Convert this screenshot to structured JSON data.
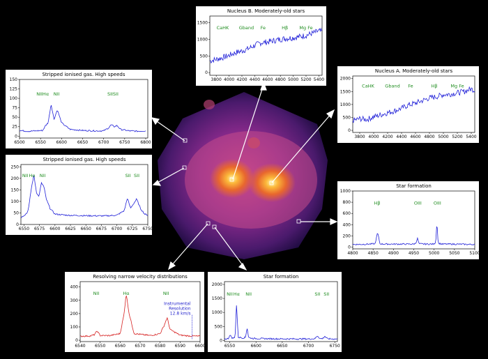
{
  "colors": {
    "blue_line": "#2020d8",
    "red_line": "#d62020",
    "label_green": "#1e8c1e",
    "map_dark": "#1a0a3c",
    "map_mid": "#6a1f8a",
    "map_bright": "#e8672d",
    "map_core": "#fff3a0"
  },
  "chart_data": [
    {
      "id": "nucleusB",
      "type": "line",
      "title": "Nucleus B. Moderately-old stars",
      "xlim": [
        3700,
        5450
      ],
      "ylim": [
        -80,
        1700
      ],
      "xticks": [
        3800,
        4000,
        4200,
        4400,
        4600,
        4800,
        5000,
        5200,
        5400
      ],
      "yticks": [
        0,
        500,
        1000,
        1500
      ],
      "color": "blue",
      "labels": [
        {
          "text": "CaHK",
          "x": 3900,
          "y": 1300
        },
        {
          "text": "Gband",
          "x": 4270,
          "y": 1300
        },
        {
          "text": "Fe",
          "x": 4530,
          "y": 1300
        },
        {
          "text": "Hβ",
          "x": 4870,
          "y": 1300
        },
        {
          "text": "Mg Fe",
          "x": 5200,
          "y": 1300
        }
      ],
      "series": [
        {
          "x": [
            3700,
            3800,
            3900,
            4000,
            4100,
            4200,
            4300,
            4400,
            4500,
            4600,
            4700,
            4800,
            4900,
            5000,
            5100,
            5200,
            5300,
            5400,
            5450
          ],
          "values": [
            350,
            400,
            450,
            520,
            600,
            650,
            720,
            820,
            900,
            920,
            960,
            1000,
            1030,
            1050,
            1080,
            1120,
            1180,
            1250,
            1230
          ]
        }
      ]
    },
    {
      "id": "nucleusA",
      "type": "line",
      "title": "Nucleus A. Moderately-old stars",
      "xlim": [
        3700,
        5450
      ],
      "ylim": [
        -80,
        2100
      ],
      "xticks": [
        3800,
        4000,
        4200,
        4400,
        4600,
        4800,
        5000,
        5200,
        5400
      ],
      "yticks": [
        0,
        500,
        1000,
        1500,
        2000
      ],
      "color": "blue",
      "labels": [
        {
          "text": "CaHK",
          "x": 3920,
          "y": 1650
        },
        {
          "text": "Gband",
          "x": 4270,
          "y": 1650
        },
        {
          "text": "Fe",
          "x": 4530,
          "y": 1650
        },
        {
          "text": "Hβ",
          "x": 4870,
          "y": 1650
        },
        {
          "text": "Mg Fe",
          "x": 5200,
          "y": 1650
        }
      ],
      "series": [
        {
          "x": [
            3700,
            3800,
            3900,
            4000,
            4100,
            4200,
            4300,
            4400,
            4500,
            4600,
            4700,
            4800,
            4900,
            5000,
            5100,
            5200,
            5300,
            5400,
            5450
          ],
          "values": [
            380,
            450,
            420,
            520,
            600,
            680,
            750,
            850,
            980,
            1050,
            1150,
            1250,
            1300,
            1380,
            1400,
            1450,
            1500,
            1600,
            1550
          ]
        }
      ]
    },
    {
      "id": "stripped1",
      "type": "line",
      "title": "Stripped ionised gas. High speeds",
      "xlim": [
        6500,
        6805
      ],
      "ylim": [
        -5,
        150
      ],
      "xticks": [
        6500,
        6550,
        6600,
        6650,
        6700,
        6750,
        6800
      ],
      "yticks": [
        0,
        25,
        50,
        75,
        100,
        125,
        150
      ],
      "color": "blue",
      "labels": [
        {
          "text": "NIIHα",
          "x": 6555,
          "y": 108
        },
        {
          "text": "NII",
          "x": 6588,
          "y": 108
        },
        {
          "text": "SIISII",
          "x": 6722,
          "y": 108
        }
      ],
      "series": [
        {
          "x": [
            6500,
            6520,
            6540,
            6555,
            6562,
            6568,
            6575,
            6582,
            6590,
            6600,
            6620,
            6650,
            6680,
            6700,
            6712,
            6718,
            6725,
            6732,
            6740,
            6760,
            6780,
            6800
          ],
          "values": [
            15,
            13,
            14,
            15,
            28,
            35,
            85,
            45,
            70,
            35,
            18,
            15,
            14,
            14,
            22,
            30,
            25,
            28,
            18,
            14,
            13,
            14
          ]
        }
      ]
    },
    {
      "id": "stripped2",
      "type": "line",
      "title": "Stripped ionised gas. High speeds",
      "xlim": [
        6545,
        6750
      ],
      "ylim": [
        0,
        260
      ],
      "xticks": [
        6550,
        6575,
        6600,
        6625,
        6650,
        6675,
        6700,
        6725,
        6750
      ],
      "yticks": [
        0,
        50,
        100,
        150,
        200,
        250
      ],
      "color": "blue",
      "labels": [
        {
          "text": "NII",
          "x": 6552,
          "y": 205
        },
        {
          "text": "Hα",
          "x": 6563,
          "y": 205
        },
        {
          "text": "NII",
          "x": 6580,
          "y": 205
        },
        {
          "text": "SII",
          "x": 6718,
          "y": 205
        },
        {
          "text": "SII",
          "x": 6732,
          "y": 205
        }
      ],
      "series": [
        {
          "x": [
            6545,
            6550,
            6555,
            6558,
            6562,
            6566,
            6570,
            6574,
            6578,
            6582,
            6586,
            6592,
            6600,
            6620,
            6650,
            6680,
            6700,
            6712,
            6717,
            6722,
            6727,
            6732,
            6738,
            6745,
            6750
          ],
          "values": [
            30,
            40,
            50,
            80,
            160,
            215,
            140,
            120,
            180,
            165,
            110,
            70,
            45,
            40,
            38,
            37,
            40,
            60,
            115,
            70,
            90,
            110,
            70,
            45,
            40
          ]
        }
      ]
    },
    {
      "id": "starform1",
      "type": "line",
      "title": "Star formation",
      "xlim": [
        4800,
        5100
      ],
      "ylim": [
        -30,
        1000
      ],
      "xticks": [
        4800,
        4850,
        4900,
        4950,
        5000,
        5050,
        5100
      ],
      "yticks": [
        0,
        200,
        400,
        600,
        800,
        1000
      ],
      "color": "blue",
      "labels": [
        {
          "text": "Hβ",
          "x": 4860,
          "y": 760
        },
        {
          "text": "OIII",
          "x": 4960,
          "y": 760
        },
        {
          "text": "OIII",
          "x": 5008,
          "y": 760
        }
      ],
      "series": [
        {
          "x": [
            4800,
            4820,
            4840,
            4855,
            4861,
            4867,
            4880,
            4920,
            4950,
            4955,
            4959,
            4963,
            4980,
            5000,
            5004,
            5007,
            5010,
            5020,
            5050,
            5080,
            5100
          ],
          "values": [
            50,
            50,
            55,
            60,
            260,
            60,
            55,
            55,
            55,
            70,
            160,
            60,
            55,
            55,
            90,
            470,
            70,
            55,
            55,
            50,
            50
          ]
        }
      ]
    },
    {
      "id": "narrowvel",
      "type": "line",
      "title": "Resolving narrow velocity distributions",
      "xlim": [
        6540,
        6600
      ],
      "ylim": [
        -10,
        440
      ],
      "xticks": [
        6540,
        6550,
        6560,
        6570,
        6580,
        6590,
        6600
      ],
      "yticks": [
        0,
        100,
        200,
        300,
        400
      ],
      "color": "red",
      "labels": [
        {
          "text": "NII",
          "x": 6548,
          "y": 340
        },
        {
          "text": "Hα",
          "x": 6563,
          "y": 340
        },
        {
          "text": "NII",
          "x": 6583,
          "y": 340
        }
      ],
      "annotation": [
        "Instrumental",
        "Resolution",
        "12.8 km/s"
      ],
      "series": [
        {
          "x": [
            6540,
            6545,
            6547,
            6548.5,
            6550,
            6555,
            6560,
            6562,
            6563,
            6564.5,
            6567,
            6575,
            6580,
            6582,
            6583.5,
            6585,
            6590,
            6595,
            6600
          ],
          "values": [
            30,
            32,
            40,
            70,
            35,
            35,
            50,
            200,
            350,
            200,
            50,
            35,
            50,
            110,
            170,
            80,
            38,
            32,
            30
          ]
        }
      ]
    },
    {
      "id": "starform2",
      "type": "line",
      "title": "Star formation",
      "xlim": [
        6540,
        6755
      ],
      "ylim": [
        -40,
        2100
      ],
      "xticks": [
        6550,
        6600,
        6650,
        6700,
        6750
      ],
      "yticks": [
        0,
        500,
        1000,
        1500,
        2000
      ],
      "color": "blue",
      "labels": [
        {
          "text": "NII",
          "x": 6550,
          "y": 1600
        },
        {
          "text": "Hα",
          "x": 6563,
          "y": 1600
        },
        {
          "text": "NII",
          "x": 6586,
          "y": 1600
        },
        {
          "text": "SII",
          "x": 6717,
          "y": 1600
        },
        {
          "text": "SII",
          "x": 6734,
          "y": 1600
        }
      ],
      "series": [
        {
          "x": [
            6540,
            6545,
            6548,
            6550,
            6555,
            6560,
            6563,
            6566,
            6575,
            6580,
            6583,
            6586,
            6595,
            6650,
            6700,
            6712,
            6717,
            6722,
            6727,
            6731,
            6736,
            6745,
            6755
          ],
          "values": [
            50,
            55,
            80,
            200,
            80,
            100,
            1320,
            120,
            90,
            110,
            460,
            100,
            70,
            55,
            55,
            60,
            170,
            60,
            70,
            150,
            60,
            55,
            50
          ]
        }
      ]
    }
  ]
}
